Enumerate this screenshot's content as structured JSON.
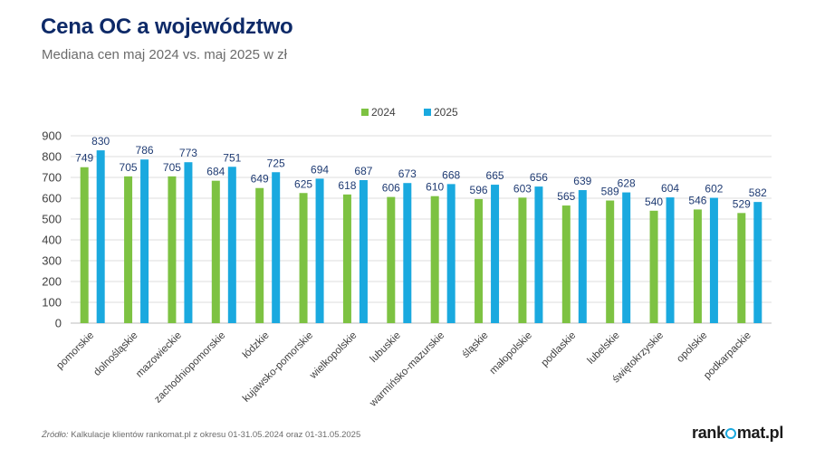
{
  "header": {
    "title": "Cena OC a województwo",
    "subtitle": "Mediana cen maj 2024 vs. maj 2025 w zł"
  },
  "footer": {
    "source_label": "Źródło:",
    "source_text": " Kalkulacje klientów rankomat.pl z okresu 01-31.05.2024 oraz 01-31.05.2025"
  },
  "logo": {
    "part1": "rank",
    "part2": "mat.pl"
  },
  "colors": {
    "series_2024": "#7dc242",
    "series_2025": "#1aa9df",
    "value_label": "#1f3b73",
    "axis_text": "#404040",
    "grid": "#dcdcdc"
  },
  "chart_data": {
    "type": "bar",
    "categories": [
      "pomorskie",
      "dolnośląskie",
      "mazowieckie",
      "zachodniopomorskie",
      "łódzkie",
      "kujawsko-pomorskie",
      "wielkopolskie",
      "lubuskie",
      "warmińsko-mazurskie",
      "śląskie",
      "małopolskie",
      "podlaskie",
      "lubelskie",
      "świętokrzyskie",
      "opolskie",
      "podkarpackie"
    ],
    "series": [
      {
        "name": "2024",
        "values": [
          749,
          705,
          705,
          684,
          649,
          625,
          618,
          606,
          610,
          596,
          603,
          565,
          589,
          540,
          546,
          529
        ]
      },
      {
        "name": "2025",
        "values": [
          830,
          786,
          773,
          751,
          725,
          694,
          687,
          673,
          668,
          665,
          656,
          639,
          628,
          604,
          602,
          582
        ]
      }
    ],
    "ylim": [
      0,
      900
    ],
    "yticks": [
      "0",
      "100",
      "200",
      "300",
      "400",
      "500",
      "600",
      "700",
      "800",
      "900"
    ],
    "grid": true,
    "legend_position": "top-center"
  }
}
